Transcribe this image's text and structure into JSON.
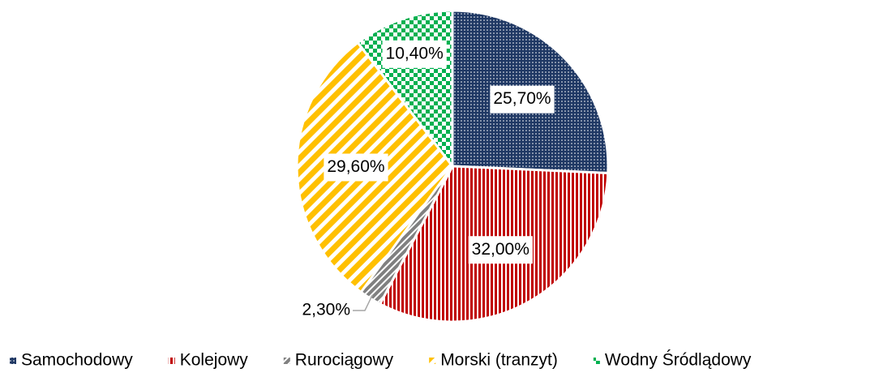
{
  "chart_data": {
    "type": "pie",
    "categories": [
      "Samochodowy",
      "Kolejowy",
      "Rurociągowy",
      "Morski (tranzyt)",
      "Wodny Śródlądowy"
    ],
    "values": [
      25.7,
      32.0,
      2.3,
      29.6,
      10.4
    ],
    "value_labels": [
      "25,70%",
      "32,00%",
      "2,30%",
      "29,60%",
      "10,40%"
    ],
    "colors": [
      "#1f3864",
      "#c00000",
      "#808080",
      "#ffc000",
      "#00b050"
    ],
    "patterns": [
      "dots",
      "vertical",
      "diagonal",
      "wide-diagonal",
      "checker"
    ],
    "legend": "bottom"
  }
}
